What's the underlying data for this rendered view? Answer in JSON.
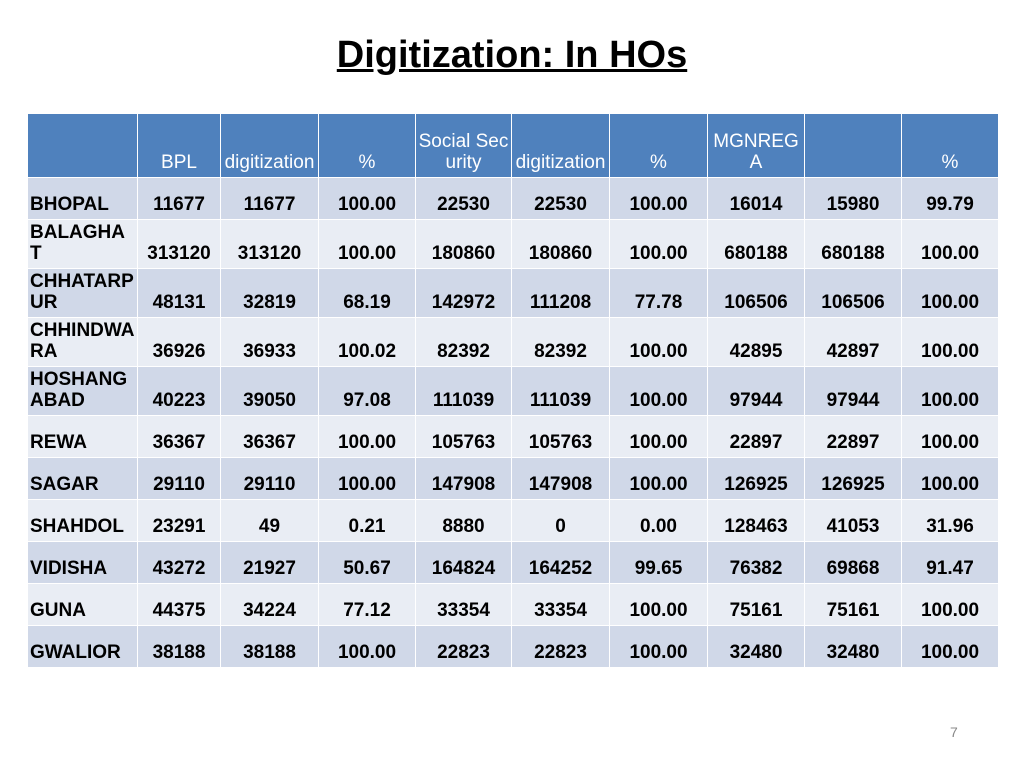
{
  "title": "Digitization: In HOs",
  "table": {
    "header": [
      null,
      "BPL",
      "digitization",
      "%",
      "Social Security",
      "digitization",
      "%",
      "MGNREGA",
      null,
      "%"
    ],
    "rows": [
      [
        "BHOPAL",
        "11677",
        "11677",
        "100.00",
        "22530",
        "22530",
        "100.00",
        "16014",
        "15980",
        "99.79"
      ],
      [
        "BALAGHAT",
        "313120",
        "313120",
        "100.00",
        "180860",
        "180860",
        "100.00",
        "680188",
        "680188",
        "100.00"
      ],
      [
        "CHHATARPUR",
        "48131",
        "32819",
        "68.19",
        "142972",
        "111208",
        "77.78",
        "106506",
        "106506",
        "100.00"
      ],
      [
        "CHHINDWARA",
        "36926",
        "36933",
        "100.02",
        "82392",
        "82392",
        "100.00",
        "42895",
        "42897",
        "100.00"
      ],
      [
        "HOSHANGABAD",
        "40223",
        "39050",
        "97.08",
        "111039",
        "111039",
        "100.00",
        "97944",
        "97944",
        "100.00"
      ],
      [
        "REWA",
        "36367",
        "36367",
        "100.00",
        "105763",
        "105763",
        "100.00",
        "22897",
        "22897",
        "100.00"
      ],
      [
        "SAGAR",
        "29110",
        "29110",
        "100.00",
        "147908",
        "147908",
        "100.00",
        "126925",
        "126925",
        "100.00"
      ],
      [
        "SHAHDOL",
        "23291",
        "49",
        "0.21",
        "8880",
        "0",
        "0.00",
        "128463",
        "41053",
        "31.96"
      ],
      [
        "VIDISHA",
        "43272",
        "21927",
        "50.67",
        "164824",
        "164252",
        "99.65",
        "76382",
        "69868",
        "91.47"
      ],
      [
        "GUNA",
        "44375",
        "34224",
        "77.12",
        "33354",
        "33354",
        "100.00",
        "75161",
        "75161",
        "100.00"
      ],
      [
        "GWALIOR",
        "38188",
        "38188",
        "100.00",
        "22823",
        "22823",
        "100.00",
        "32480",
        "32480",
        "100.00"
      ]
    ]
  },
  "page_number": "7"
}
